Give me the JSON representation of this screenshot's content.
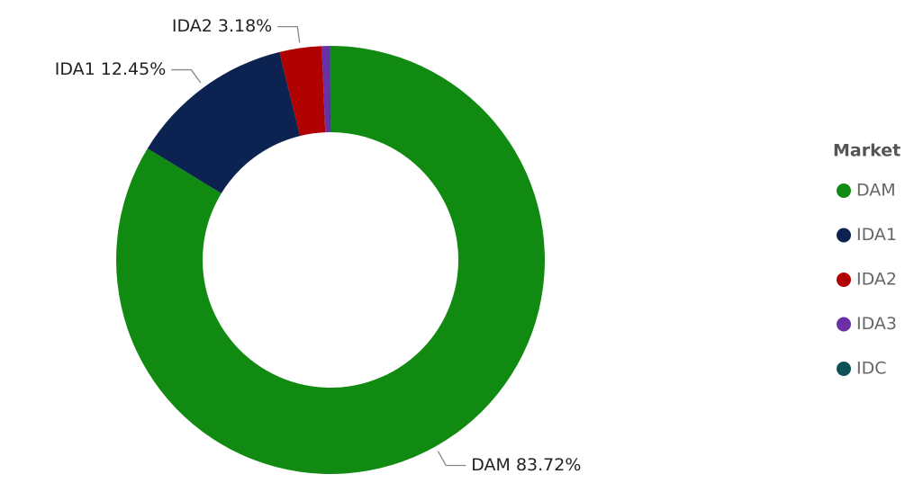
{
  "chart_data": {
    "type": "donut",
    "categories": [
      "DAM",
      "IDA1",
      "IDA2",
      "IDA3",
      "IDC"
    ],
    "values": [
      83.72,
      12.45,
      3.18,
      0.6,
      0.05
    ],
    "value_labels": [
      "DAM 83.72%",
      "IDA1 12.45%",
      "IDA2 3.18%",
      null,
      null
    ],
    "colors": [
      "#118a11",
      "#0c2352",
      "#b00000",
      "#6b2fa6",
      "#0d5158"
    ],
    "legend_title": "Market",
    "legend": "right"
  }
}
